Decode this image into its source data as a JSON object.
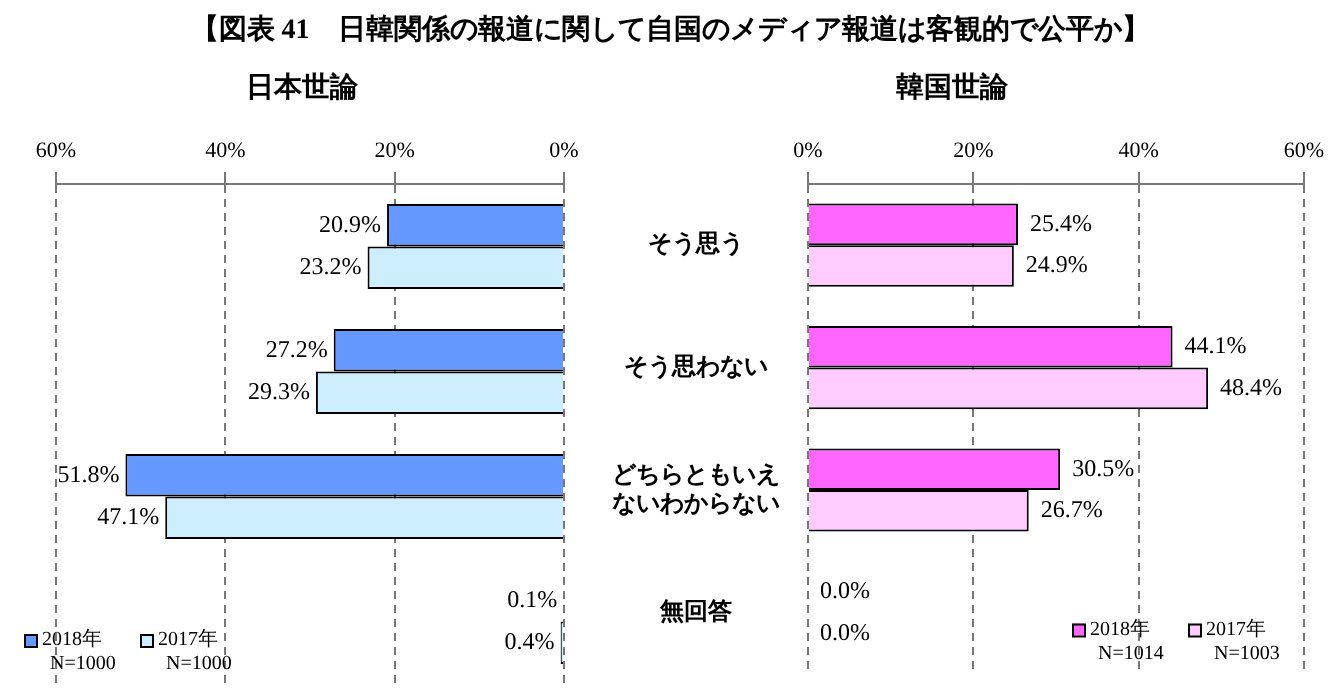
{
  "chart_data": [
    {
      "type": "bar",
      "orientation": "horizontal",
      "title": "日本世論",
      "annotations": [
        "【図表 41　日韓関係の報道に関して自国のメディア報道は客観的で公平か】"
      ],
      "categories": [
        "そう思う",
        "そう思わない",
        "どちらともいえないわからない",
        "無回答"
      ],
      "series": [
        {
          "name": "2018年 N=1000",
          "color": "#6699ff",
          "values": [
            20.9,
            27.2,
            51.8,
            0.1
          ],
          "value_labels": [
            "20.9%",
            "27.2%",
            "51.8%",
            "0.1%"
          ]
        },
        {
          "name": "2017年 N=1000",
          "color": "#cceeff",
          "values": [
            23.2,
            29.3,
            47.1,
            0.4
          ],
          "value_labels": [
            "23.2%",
            "29.3%",
            "47.1%",
            "0.4%"
          ]
        }
      ],
      "xlim": [
        60,
        0
      ],
      "xticks": [
        {
          "value": 60,
          "label": "60%"
        },
        {
          "value": 40,
          "label": "40%"
        },
        {
          "value": 20,
          "label": "20%"
        },
        {
          "value": 0,
          "label": "0%"
        }
      ],
      "grid": "x",
      "legend": "bottom left",
      "tick_labels": "x"
    },
    {
      "type": "bar",
      "orientation": "horizontal",
      "title": "韓国世論",
      "categories": [
        "そう思う",
        "そう思わない",
        "どちらともいえないわからない",
        "無回答"
      ],
      "series": [
        {
          "name": "2018年 N=1014",
          "color": "#ff66ff",
          "values": [
            25.4,
            44.1,
            30.5,
            0.0
          ],
          "value_labels": [
            "25.4%",
            "44.1%",
            "30.5%",
            "0.0%"
          ]
        },
        {
          "name": "2017年 N=1003",
          "color": "#ffccff",
          "values": [
            24.9,
            48.4,
            26.7,
            0.0
          ],
          "value_labels": [
            "24.9%",
            "48.4%",
            "26.7%",
            "0.0%"
          ]
        }
      ],
      "xlim": [
        0,
        60
      ],
      "xticks": [
        {
          "value": 0,
          "label": "0%"
        },
        {
          "value": 20,
          "label": "20%"
        },
        {
          "value": 40,
          "label": "40%"
        },
        {
          "value": 60,
          "label": "60%"
        }
      ],
      "grid": "x",
      "legend": "bottom right"
    }
  ]
}
